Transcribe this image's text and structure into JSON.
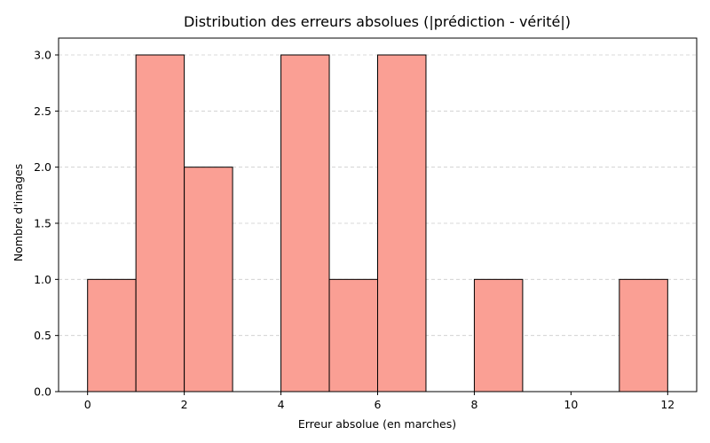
{
  "chart_data": {
    "type": "bar",
    "title": "Distribution des erreurs absolues (|prédiction - vérité|)",
    "xlabel": "Erreur absolue (en marches)",
    "ylabel": "Nombre d'images",
    "bins": [
      {
        "x0": 0,
        "x1": 1,
        "count": 1
      },
      {
        "x0": 1,
        "x1": 2,
        "count": 3
      },
      {
        "x0": 2,
        "x1": 3,
        "count": 2
      },
      {
        "x0": 3,
        "x1": 4,
        "count": 0
      },
      {
        "x0": 4,
        "x1": 5,
        "count": 3
      },
      {
        "x0": 5,
        "x1": 6,
        "count": 1
      },
      {
        "x0": 6,
        "x1": 7,
        "count": 3
      },
      {
        "x0": 7,
        "x1": 8,
        "count": 0
      },
      {
        "x0": 8,
        "x1": 9,
        "count": 1
      },
      {
        "x0": 9,
        "x1": 10,
        "count": 0
      },
      {
        "x0": 10,
        "x1": 11,
        "count": 0
      },
      {
        "x0": 11,
        "x1": 12,
        "count": 1
      }
    ],
    "xlim": [
      -0.6,
      12.6
    ],
    "ylim": [
      0,
      3.15
    ],
    "xticks": [
      0,
      2,
      4,
      6,
      8,
      10,
      12
    ],
    "xtick_labels": [
      "0",
      "2",
      "4",
      "6",
      "8",
      "10",
      "12"
    ],
    "yticks": [
      0,
      0.5,
      1,
      1.5,
      2,
      2.5,
      3
    ],
    "ytick_labels": [
      "0.0",
      "0.5",
      "1.0",
      "1.5",
      "2.0",
      "2.5",
      "3.0"
    ],
    "grid": "y-dashed",
    "bar_color": "#fa9f94",
    "edge_color": "#000000"
  }
}
